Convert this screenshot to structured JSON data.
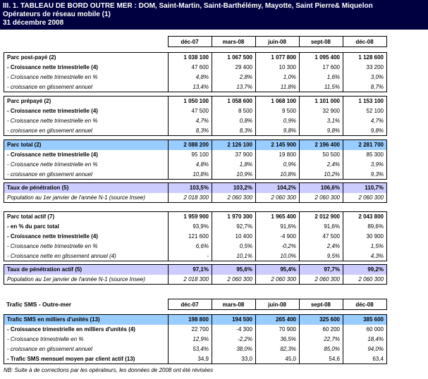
{
  "header": {
    "line1": "III. 1. TABLEAU DE BORD OUTRE MER : DOM, Saint-Martin, Saint-Barthélémy, Mayotte, Saint Pierre& Miquelon",
    "line2": "Opérateurs de réseau mobile (1)",
    "line3": "31 décembre 2008"
  },
  "columns": [
    "déc-07",
    "mars-08",
    "juin-08",
    "sept-08",
    "déc-08"
  ],
  "colors": {
    "title_bg": "#000040",
    "highlight_blue": "#99CCFF",
    "highlight_lavender": "#CCCCFF"
  },
  "blocks": [
    {
      "type": "colheader",
      "label": ""
    },
    {
      "type": "table",
      "name": "parc-post-paye",
      "rows": [
        {
          "label": "Parc post-payé (2)",
          "values": [
            "1 038 100",
            "1 067 500",
            "1 077 800",
            "1 095 400",
            "1 128 600"
          ],
          "style": "main",
          "bg": ""
        },
        {
          "label": "- Croissance nette trimestrielle (4)",
          "values": [
            "47 600",
            "29 400",
            "10 300",
            "17 600",
            "33 200"
          ],
          "style": "sub",
          "bg": ""
        },
        {
          "label": "- Croissance nette trimestrielle en %",
          "values": [
            "4,8%",
            "2,8%",
            "1,0%",
            "1,6%",
            "3,0%"
          ],
          "style": "italic",
          "bg": ""
        },
        {
          "label": "- croissance en glissement annuel",
          "values": [
            "13,4%",
            "13,7%",
            "11,8%",
            "11,5%",
            "8,7%"
          ],
          "style": "italic",
          "bg": ""
        }
      ]
    },
    {
      "type": "table",
      "name": "parc-prepaye",
      "rows": [
        {
          "label": "Parc prépayé (2)",
          "values": [
            "1 050 100",
            "1 058 600",
            "1 068 100",
            "1 101 000",
            "1 153 100"
          ],
          "style": "main",
          "bg": ""
        },
        {
          "label": "- Croissance nette trimestrielle (4)",
          "values": [
            "47 500",
            "8 500",
            "9 500",
            "32 900",
            "52 100"
          ],
          "style": "sub",
          "bg": ""
        },
        {
          "label": "- Croissance nette trimestrielle en %",
          "values": [
            "4,7%",
            "0,8%",
            "0,9%",
            "3,1%",
            "4,7%"
          ],
          "style": "italic",
          "bg": ""
        },
        {
          "label": "- croissance en glissement annuel",
          "values": [
            "8,3%",
            "8,3%",
            "9,8%",
            "9,8%",
            "9,8%"
          ],
          "style": "italic",
          "bg": ""
        }
      ]
    },
    {
      "type": "table",
      "name": "parc-total",
      "rows": [
        {
          "label": "Parc total (2)",
          "values": [
            "2 088 200",
            "2 126 100",
            "2 145 900",
            "2 196 400",
            "2 281 700"
          ],
          "style": "main",
          "bg": "blue"
        },
        {
          "label": "- Croissance nette trimestrielle (4)",
          "values": [
            "95 100",
            "37 900",
            "19 800",
            "50 500",
            "85 300"
          ],
          "style": "sub",
          "bg": ""
        },
        {
          "label": "- Croissance nette trimestrielle en %",
          "values": [
            "4,8%",
            "1,8%",
            "0,9%",
            "2,4%",
            "3,9%"
          ],
          "style": "italic",
          "bg": ""
        },
        {
          "label": "- croissance en glissement annuel",
          "values": [
            "10,8%",
            "10,9%",
            "10,8%",
            "10,2%",
            "9,3%"
          ],
          "style": "italic",
          "bg": ""
        }
      ]
    },
    {
      "type": "table",
      "name": "taux-penetration",
      "rows": [
        {
          "label": "Taux de pénétration (5)",
          "values": [
            "103,5%",
            "103,2%",
            "104,2%",
            "106,6%",
            "110,7%"
          ],
          "style": "main",
          "bg": "lavender"
        },
        {
          "label": "Population au 1er janvier de l'année N-1 (source Insee)",
          "values": [
            "2 018 300",
            "2 060 300",
            "2 060 300",
            "2 060 300",
            "2 060 300"
          ],
          "style": "italic",
          "bg": ""
        }
      ]
    },
    {
      "type": "table",
      "name": "parc-total-actif",
      "rows": [
        {
          "label": "Parc total actif (7)",
          "values": [
            "1 959 900",
            "1 970 300",
            "1 965 400",
            "2 012 900",
            "2 043 800"
          ],
          "style": "main",
          "bg": ""
        },
        {
          "label": "- en % du parc total",
          "values": [
            "93,9%",
            "92,7%",
            "91,6%",
            "91,6%",
            "89,6%"
          ],
          "style": "sub",
          "bg": ""
        },
        {
          "label": "- Croissance nette trimestrielle (4)",
          "values": [
            "121 600",
            "10 400",
            "-4 900",
            "47 500",
            "30 900"
          ],
          "style": "sub",
          "bg": ""
        },
        {
          "label": "- Croissance nette trimestrielle en %",
          "values": [
            "6,6%",
            "0,5%",
            "-0,2%",
            "2,4%",
            "1,5%"
          ],
          "style": "italic",
          "bg": ""
        },
        {
          "label": "- Croissance nette en glissement annuel (4)",
          "values": [
            "-",
            "10,1%",
            "10,0%",
            "9,5%",
            "4,3%"
          ],
          "style": "italic",
          "bg": ""
        }
      ]
    },
    {
      "type": "table",
      "name": "taux-penetration-actif",
      "rows": [
        {
          "label": "Taux de pénétration actif (5)",
          "values": [
            "97,1%",
            "95,6%",
            "95,4%",
            "97,7%",
            "99,2%"
          ],
          "style": "main",
          "bg": "lavender"
        },
        {
          "label": "Population au 1er janvier de l'année N-1 (source Insee)",
          "values": [
            "2 018 300",
            "2 060 300",
            "2 060 300",
            "2 060 300",
            "2 060 300"
          ],
          "style": "italic",
          "bg": ""
        }
      ]
    },
    {
      "type": "colheader",
      "label": "Trafic SMS - Outre-mer"
    },
    {
      "type": "table",
      "name": "trafic-sms",
      "rows": [
        {
          "label": "Trafic SMS en milliers d'unités (13)",
          "values": [
            "198 800",
            "194 500",
            "265 400",
            "325 600",
            "385 600"
          ],
          "style": "main",
          "bg": "blue"
        },
        {
          "label": "- Croissance trimestrielle en milliers d'unités (4)",
          "values": [
            "22 700",
            "-4 300",
            "70 900",
            "60 200",
            "60 000"
          ],
          "style": "sub",
          "bg": ""
        },
        {
          "label": "- Croissance trimestrielle en %",
          "values": [
            "12,9%",
            "-2,2%",
            "36,5%",
            "22,7%",
            "18,4%"
          ],
          "style": "italic",
          "bg": ""
        },
        {
          "label": "- croissance en glissement annuel",
          "values": [
            "53,4%",
            "38,0%",
            "82,3%",
            "85,0%",
            "94,0%"
          ],
          "style": "italic",
          "bg": ""
        },
        {
          "label": "- Trafic SMS mensuel moyen par client actif (13)",
          "values": [
            "34,9",
            "33,0",
            "45,0",
            "54,6",
            "63,4"
          ],
          "style": "sub",
          "bg": ""
        }
      ]
    }
  ],
  "footer_note": "NB: Suite à de corrections par les opérateurs, les données de 2008 ont été révisées"
}
